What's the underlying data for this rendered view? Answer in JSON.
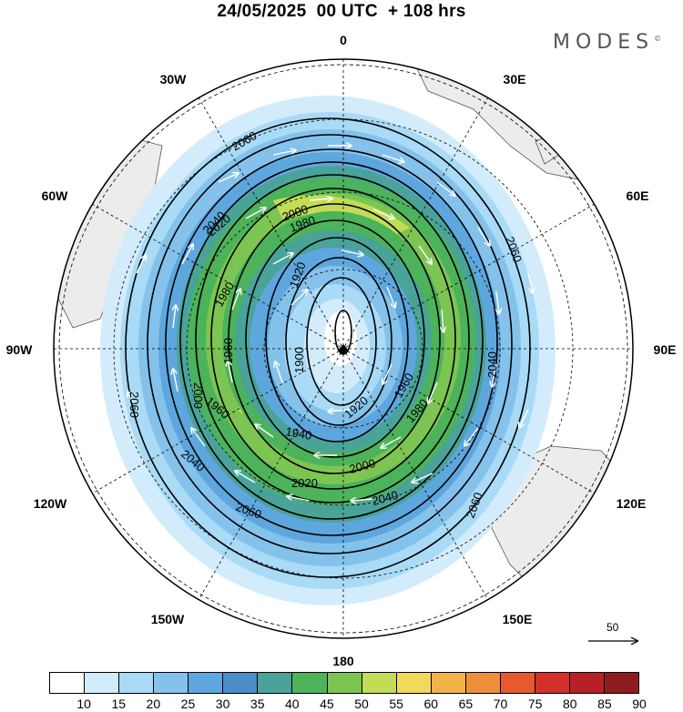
{
  "title": "24/05/2025  00 UTC  + 108 hrs",
  "logo": {
    "text": "MODES",
    "mark": "©"
  },
  "longitude_labels": [
    "0",
    "30E",
    "60E",
    "90E",
    "120E",
    "150E",
    "180",
    "150W",
    "120W",
    "90W",
    "60W",
    "30W"
  ],
  "contour_values": [
    "1900",
    "1920",
    "1940",
    "1960",
    "1980",
    "2000",
    "2020",
    "2040",
    "2060"
  ],
  "contour_labels": [
    "2060",
    "2060",
    "2060",
    "2060",
    "2060",
    "2040",
    "2040",
    "2040",
    "2040",
    "2020",
    "2020",
    "2000",
    "2000",
    "2000",
    "1980",
    "1980",
    "1980",
    "1960",
    "1960",
    "1960",
    "1940",
    "1920",
    "1920",
    "1900"
  ],
  "wind_reference": {
    "value": "50"
  },
  "colorbar": {
    "labels": [
      "10",
      "15",
      "20",
      "25",
      "30",
      "35",
      "40",
      "45",
      "50",
      "55",
      "60",
      "65",
      "70",
      "75",
      "80",
      "85",
      "90"
    ],
    "colors": [
      "#ffffff",
      "#d2ecfb",
      "#a9daf6",
      "#84c2ec",
      "#5ea7de",
      "#4a8ec8",
      "#4aa398",
      "#4cb35a",
      "#7cc552",
      "#c2dc55",
      "#f3d95a",
      "#f2b24a",
      "#ee8f3c",
      "#e55a2e",
      "#d3302a",
      "#b72027",
      "#8e1b1e"
    ]
  }
}
